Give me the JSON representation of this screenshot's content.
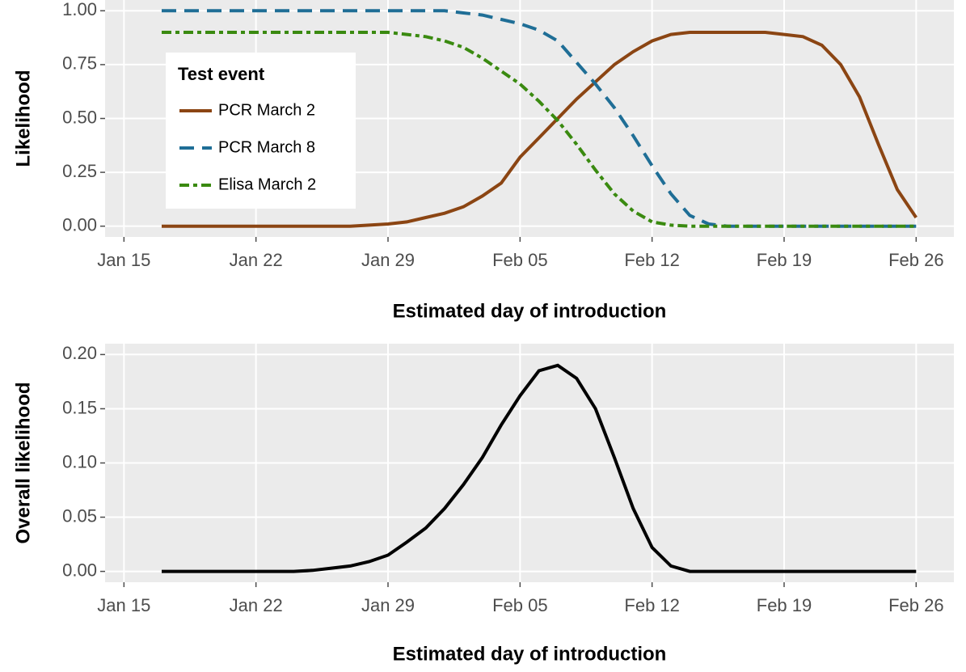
{
  "chart_data": [
    {
      "type": "line",
      "x": [
        "01-17",
        "01-18",
        "01-19",
        "01-20",
        "01-21",
        "01-22",
        "01-23",
        "01-24",
        "01-25",
        "01-26",
        "01-27",
        "01-28",
        "01-29",
        "01-30",
        "01-31",
        "02-01",
        "02-02",
        "02-03",
        "02-04",
        "02-05",
        "02-06",
        "02-07",
        "02-08",
        "02-09",
        "02-10",
        "02-11",
        "02-12",
        "02-13",
        "02-14",
        "02-15",
        "02-16",
        "02-17",
        "02-18",
        "02-19",
        "02-20",
        "02-21",
        "02-22",
        "02-23",
        "02-24",
        "02-25",
        "02-26"
      ],
      "series": [
        {
          "name": "PCR March 2",
          "color": "#8b4513",
          "linestyle": "solid",
          "values": [
            0,
            0,
            0,
            0,
            0,
            0,
            0,
            0,
            0,
            0,
            0,
            0.005,
            0.01,
            0.02,
            0.04,
            0.06,
            0.09,
            0.14,
            0.2,
            0.32,
            0.41,
            0.5,
            0.59,
            0.67,
            0.75,
            0.81,
            0.86,
            0.89,
            0.9,
            0.9,
            0.9,
            0.9,
            0.9,
            0.89,
            0.88,
            0.84,
            0.75,
            0.6,
            0.38,
            0.17,
            0.04
          ]
        },
        {
          "name": "PCR March 8",
          "color": "#1f6e96",
          "linestyle": "dashed",
          "values": [
            1,
            1,
            1,
            1,
            1,
            1,
            1,
            1,
            1,
            1,
            1,
            1,
            1,
            1,
            1,
            1,
            0.99,
            0.98,
            0.96,
            0.94,
            0.91,
            0.86,
            0.76,
            0.66,
            0.55,
            0.42,
            0.28,
            0.15,
            0.05,
            0.01,
            0,
            0,
            0,
            0,
            0,
            0,
            0,
            0,
            0,
            0,
            0
          ]
        },
        {
          "name": "Elisa March 2",
          "color": "#3a8a10",
          "linestyle": "dotdash",
          "values": [
            0.9,
            0.9,
            0.9,
            0.9,
            0.9,
            0.9,
            0.9,
            0.9,
            0.9,
            0.9,
            0.9,
            0.9,
            0.9,
            0.89,
            0.88,
            0.86,
            0.83,
            0.78,
            0.72,
            0.66,
            0.58,
            0.49,
            0.38,
            0.26,
            0.15,
            0.07,
            0.02,
            0.005,
            0,
            0,
            0,
            0,
            0,
            0,
            0,
            0,
            0,
            0,
            0,
            0,
            0
          ]
        }
      ],
      "xlabel": "Estimated day of introduction",
      "ylabel": "Likelihood",
      "xlim": [
        "01-14",
        "02-28"
      ],
      "xticks": [
        {
          "value": "01-15",
          "label": "Jan 15"
        },
        {
          "value": "01-22",
          "label": "Jan 22"
        },
        {
          "value": "01-29",
          "label": "Jan 29"
        },
        {
          "value": "02-05",
          "label": "Feb 05"
        },
        {
          "value": "02-12",
          "label": "Feb 12"
        },
        {
          "value": "02-19",
          "label": "Feb 19"
        },
        {
          "value": "02-26",
          "label": "Feb 26"
        }
      ],
      "ylim": [
        -0.05,
        1.05
      ],
      "yticks": [
        {
          "value": 0,
          "label": "0.00"
        },
        {
          "value": 0.25,
          "label": "0.25"
        },
        {
          "value": 0.5,
          "label": "0.50"
        },
        {
          "value": 0.75,
          "label": "0.75"
        },
        {
          "value": 1,
          "label": "1.00"
        }
      ],
      "grid": true,
      "legend_title": "Test event",
      "legend": "top-left"
    },
    {
      "type": "line",
      "x": [
        "01-17",
        "01-18",
        "01-19",
        "01-20",
        "01-21",
        "01-22",
        "01-23",
        "01-24",
        "01-25",
        "01-26",
        "01-27",
        "01-28",
        "01-29",
        "01-30",
        "01-31",
        "02-01",
        "02-02",
        "02-03",
        "02-04",
        "02-05",
        "02-06",
        "02-07",
        "02-08",
        "02-09",
        "02-10",
        "02-11",
        "02-12",
        "02-13",
        "02-14",
        "02-15",
        "02-16",
        "02-17",
        "02-18",
        "02-19",
        "02-20",
        "02-21",
        "02-22",
        "02-23",
        "02-24",
        "02-25",
        "02-26"
      ],
      "series": [
        {
          "color": "#000000",
          "linestyle": "solid",
          "values": [
            0,
            0,
            0,
            0,
            0,
            0,
            0,
            0,
            0.001,
            0.003,
            0.005,
            0.009,
            0.015,
            0.027,
            0.04,
            0.058,
            0.08,
            0.105,
            0.135,
            0.162,
            0.185,
            0.19,
            0.178,
            0.15,
            0.105,
            0.058,
            0.022,
            0.005,
            0,
            0,
            0,
            0,
            0,
            0,
            0,
            0,
            0,
            0,
            0,
            0,
            0
          ]
        }
      ],
      "xlabel": "Estimated day of introduction",
      "ylabel": "Overall likelihood",
      "xlim": [
        "01-14",
        "02-28"
      ],
      "xticks": [
        {
          "value": "01-15",
          "label": "Jan 15"
        },
        {
          "value": "01-22",
          "label": "Jan 22"
        },
        {
          "value": "01-29",
          "label": "Jan 29"
        },
        {
          "value": "02-05",
          "label": "Feb 05"
        },
        {
          "value": "02-12",
          "label": "Feb 12"
        },
        {
          "value": "02-19",
          "label": "Feb 19"
        },
        {
          "value": "02-26",
          "label": "Feb 26"
        }
      ],
      "ylim": [
        -0.01,
        0.21
      ],
      "yticks": [
        {
          "value": 0,
          "label": "0.00"
        },
        {
          "value": 0.05,
          "label": "0.05"
        },
        {
          "value": 0.1,
          "label": "0.10"
        },
        {
          "value": 0.15,
          "label": "0.15"
        },
        {
          "value": 0.2,
          "label": "0.20"
        }
      ],
      "grid": true
    }
  ]
}
